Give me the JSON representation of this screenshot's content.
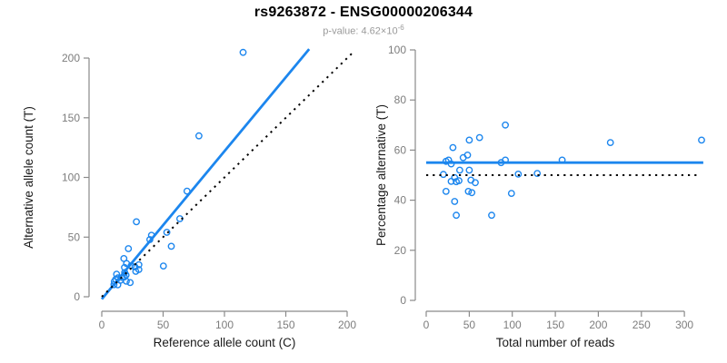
{
  "header": {
    "title": "rs9263872 - ENSG00000206344",
    "pvalue_prefix": "p-value: 4.62×10",
    "pvalue_exponent": "-6"
  },
  "colors": {
    "accent": "#1C86EE",
    "line_black": "#000000",
    "axis": "#8a8a8a",
    "tick_label": "#7d7d7d",
    "axis_label": "#1a1a1a"
  },
  "chart_data": [
    {
      "type": "scatter",
      "panel": "allele-count-scatter",
      "xlabel": "Reference allele count (C)",
      "ylabel": "Alternative allele count (T)",
      "xlim": [
        0,
        200
      ],
      "ylim": [
        0,
        200
      ],
      "xticks": [
        0,
        50,
        100,
        150,
        200
      ],
      "yticks": [
        0,
        50,
        100,
        150,
        200
      ],
      "grid": false,
      "points": [
        [
          9.9,
          10.1
        ],
        [
          13.0,
          10.0
        ],
        [
          10.2,
          12.8
        ],
        [
          11.4,
          14.6
        ],
        [
          13.2,
          15.8
        ],
        [
          15.2,
          13.8
        ],
        [
          12.1,
          18.9
        ],
        [
          16.8,
          16.2
        ],
        [
          20.0,
          13.0
        ],
        [
          18.4,
          16.6
        ],
        [
          23.1,
          11.9
        ],
        [
          19.8,
          18.2
        ],
        [
          18.7,
          20.3
        ],
        [
          18.5,
          24.5
        ],
        [
          20.2,
          27.8
        ],
        [
          27.7,
          21.3
        ],
        [
          18.0,
          32.0
        ],
        [
          24.0,
          26.0
        ],
        [
          27.0,
          25.0
        ],
        [
          30.2,
          22.8
        ],
        [
          30.2,
          26.8
        ],
        [
          21.7,
          40.3
        ],
        [
          50.2,
          25.8
        ],
        [
          39.2,
          47.9
        ],
        [
          28.2,
          62.8
        ],
        [
          40.5,
          51.5
        ],
        [
          56.7,
          42.3
        ],
        [
          53.0,
          54.0
        ],
        [
          63.6,
          65.4
        ],
        [
          69.5,
          88.5
        ],
        [
          79.2,
          134.8
        ],
        [
          115.2,
          204.8
        ]
      ],
      "lines": [
        {
          "name": "regression-line",
          "style": "solid",
          "color": "#1C86EE",
          "x1": 0,
          "y1": -2,
          "x2": 169,
          "y2": 207.5
        },
        {
          "name": "identity-line",
          "style": "dotted",
          "color": "#000000",
          "x1": 0,
          "y1": 0,
          "x2": 205,
          "y2": 205
        }
      ]
    },
    {
      "type": "scatter",
      "panel": "percentage-scatter",
      "xlabel": "Total number of reads",
      "ylabel": "Percentage alternative (T)",
      "xlim": [
        0,
        300
      ],
      "ylim": [
        0,
        100
      ],
      "xticks": [
        0,
        50,
        100,
        150,
        200,
        250,
        300
      ],
      "yticks": [
        0,
        20,
        40,
        60,
        80,
        100
      ],
      "grid": false,
      "points": [
        [
          20,
          50.3
        ],
        [
          23,
          43.5
        ],
        [
          23,
          55.5
        ],
        [
          26,
          56
        ],
        [
          29,
          54.5
        ],
        [
          29,
          47.5
        ],
        [
          31,
          61
        ],
        [
          33,
          49
        ],
        [
          33,
          39.5
        ],
        [
          35,
          47.4
        ],
        [
          35,
          34
        ],
        [
          38,
          47.8
        ],
        [
          39,
          52
        ],
        [
          43,
          57
        ],
        [
          48,
          58
        ],
        [
          49,
          43.5
        ],
        [
          50,
          64
        ],
        [
          50,
          52
        ],
        [
          52,
          48
        ],
        [
          53,
          43
        ],
        [
          57,
          47
        ],
        [
          62,
          65
        ],
        [
          76,
          34
        ],
        [
          87,
          55
        ],
        [
          92,
          70
        ],
        [
          92,
          56
        ],
        [
          99,
          42.7
        ],
        [
          107,
          50.4
        ],
        [
          129,
          50.7
        ],
        [
          158,
          56
        ],
        [
          214,
          63
        ],
        [
          320,
          64
        ]
      ],
      "lines": [
        {
          "name": "mean-percentage-line",
          "style": "solid",
          "color": "#1C86EE",
          "x1": 0,
          "y1": 55,
          "x2": 322,
          "y2": 55
        },
        {
          "name": "fifty-percent-line",
          "style": "dotted",
          "color": "#000000",
          "x1": 0,
          "y1": 50,
          "x2": 316,
          "y2": 50
        }
      ]
    }
  ]
}
